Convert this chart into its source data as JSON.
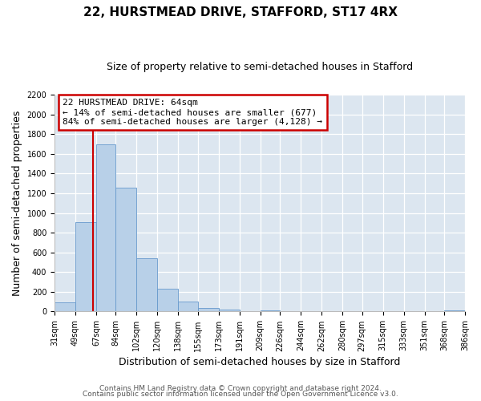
{
  "title_line1": "22, HURSTMEAD DRIVE, STAFFORD, ST17 4RX",
  "title_line2": "Size of property relative to semi-detached houses in Stafford",
  "xlabel": "Distribution of semi-detached houses by size in Stafford",
  "ylabel": "Number of semi-detached properties",
  "bin_edges": [
    31,
    49,
    67,
    84,
    102,
    120,
    138,
    155,
    173,
    191,
    209,
    226,
    244,
    262,
    280,
    297,
    315,
    333,
    351,
    368,
    386
  ],
  "bin_counts": [
    95,
    910,
    1700,
    1260,
    540,
    235,
    105,
    38,
    20,
    0,
    15,
    0,
    0,
    0,
    0,
    0,
    0,
    0,
    0,
    15
  ],
  "bar_color": "#b8d0e8",
  "bar_edgecolor": "#6699cc",
  "property_size": 64,
  "vline_color": "#cc0000",
  "annotation_text": "22 HURSTMEAD DRIVE: 64sqm\n← 14% of semi-detached houses are smaller (677)\n84% of semi-detached houses are larger (4,128) →",
  "annotation_box_edgecolor": "#cc0000",
  "ylim": [
    0,
    2200
  ],
  "yticks": [
    0,
    200,
    400,
    600,
    800,
    1000,
    1200,
    1400,
    1600,
    1800,
    2000,
    2200
  ],
  "footer_line1": "Contains HM Land Registry data © Crown copyright and database right 2024.",
  "footer_line2": "Contains public sector information licensed under the Open Government Licence v3.0.",
  "background_color": "#ffffff",
  "plot_background": "#dce6f0",
  "grid_color": "#ffffff",
  "title_fontsize": 11,
  "subtitle_fontsize": 9,
  "axis_label_fontsize": 9,
  "tick_fontsize": 7,
  "footer_fontsize": 6.5,
  "annotation_fontsize": 8
}
